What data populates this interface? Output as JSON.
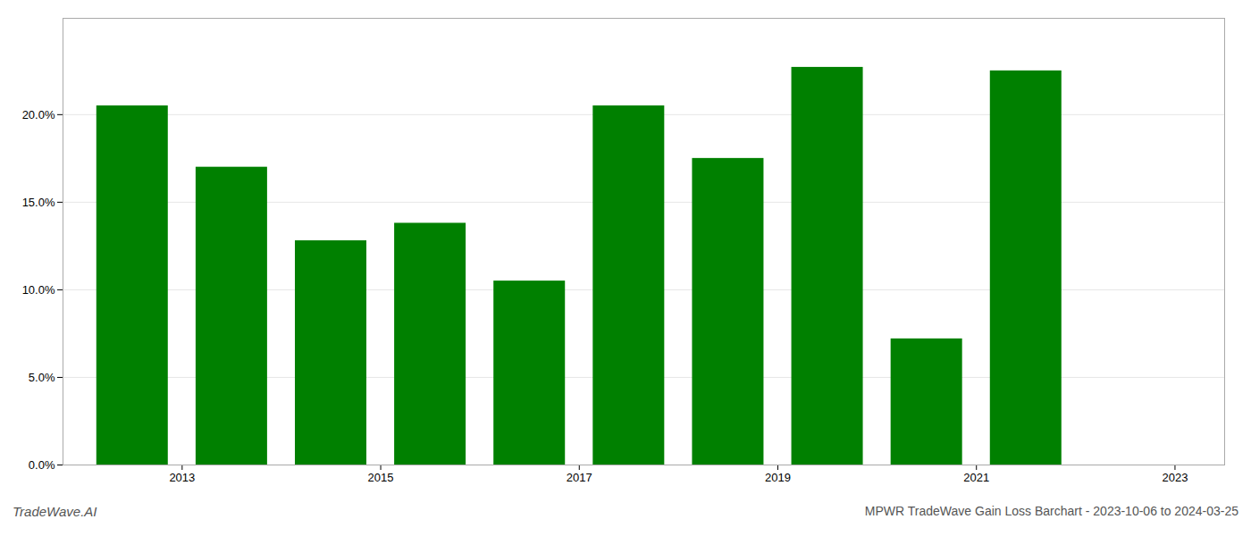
{
  "chart_data": {
    "type": "bar",
    "x": [
      2012.5,
      2013.5,
      2014.5,
      2015.5,
      2016.5,
      2017.5,
      2018.5,
      2019.5,
      2020.5,
      2021.5
    ],
    "values": [
      0.205,
      0.17,
      0.128,
      0.138,
      0.105,
      0.205,
      0.175,
      0.227,
      0.072,
      0.225
    ],
    "color": "#008000",
    "xlim": [
      2011.8,
      2023.5
    ],
    "xticks": [
      2013,
      2015,
      2017,
      2019,
      2021,
      2023
    ],
    "ylim": [
      0,
      0.255
    ],
    "yticks": [
      {
        "value": 0.0,
        "label": "0.0%"
      },
      {
        "value": 0.05,
        "label": "5.0%"
      },
      {
        "value": 0.1,
        "label": "10.0%"
      },
      {
        "value": 0.15,
        "label": "15.0%"
      },
      {
        "value": 0.2,
        "label": "20.0%"
      }
    ],
    "grid": true,
    "annotations": [
      "TradeWave.AI",
      "MPWR TradeWave Gain Loss Barchart - 2023-10-06 to 2024-03-25"
    ]
  }
}
